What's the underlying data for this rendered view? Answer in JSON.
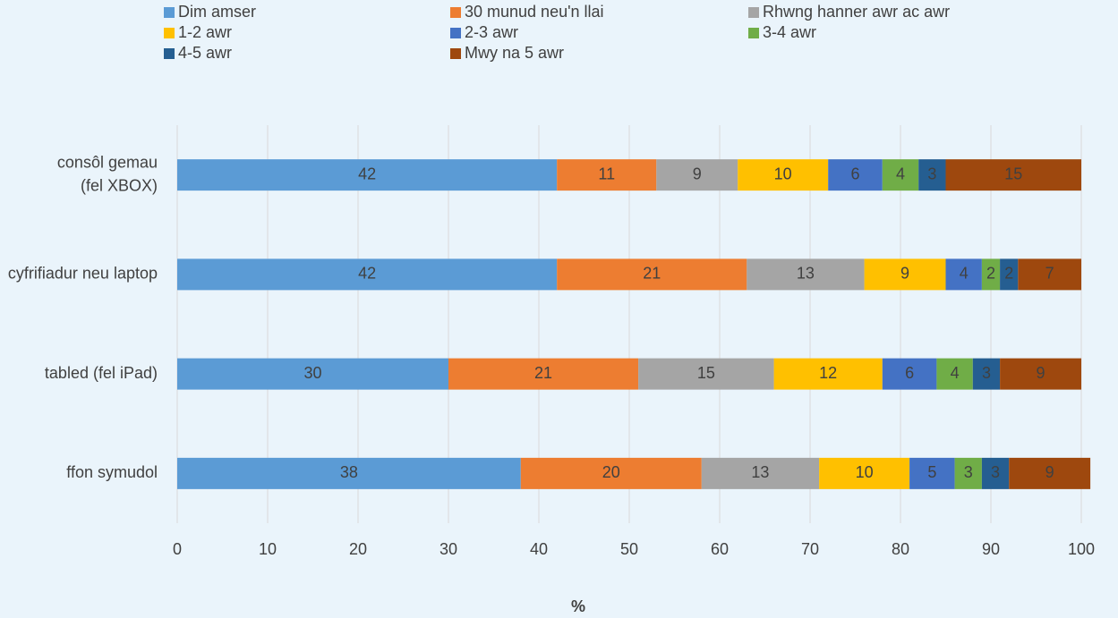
{
  "chart_data": {
    "type": "stacked_barh",
    "categories": [
      "consôl gemau (fel XBOX)",
      "cyfrifiadur neu laptop",
      "tabled (fel iPad)",
      "ffon symudol"
    ],
    "series": [
      {
        "name": "Dim amser",
        "color": "#5b9bd5",
        "values": [
          42,
          42,
          30,
          38
        ]
      },
      {
        "name": "30 munud neu'n llai",
        "color": "#ed7d31",
        "values": [
          11,
          21,
          21,
          20
        ]
      },
      {
        "name": "Rhwng hanner awr ac awr",
        "color": "#a5a5a5",
        "values": [
          9,
          13,
          15,
          13
        ]
      },
      {
        "name": "1-2 awr",
        "color": "#ffc000",
        "values": [
          10,
          9,
          12,
          10
        ]
      },
      {
        "name": "2-3 awr",
        "color": "#4472c4",
        "values": [
          6,
          4,
          6,
          5
        ]
      },
      {
        "name": "3-4 awr",
        "color": "#70ad47",
        "values": [
          4,
          2,
          4,
          3
        ]
      },
      {
        "name": "4-5 awr",
        "color": "#255e91",
        "values": [
          3,
          2,
          3,
          3
        ]
      },
      {
        "name": "Mwy na 5 awr",
        "color": "#9e480e",
        "values": [
          15,
          7,
          9,
          9
        ]
      }
    ],
    "xlabel": "%",
    "xlim": [
      0,
      100
    ],
    "xticks": [
      0,
      10,
      20,
      30,
      40,
      50,
      60,
      70,
      80,
      90,
      100
    ],
    "grid": true,
    "legend": "top"
  }
}
